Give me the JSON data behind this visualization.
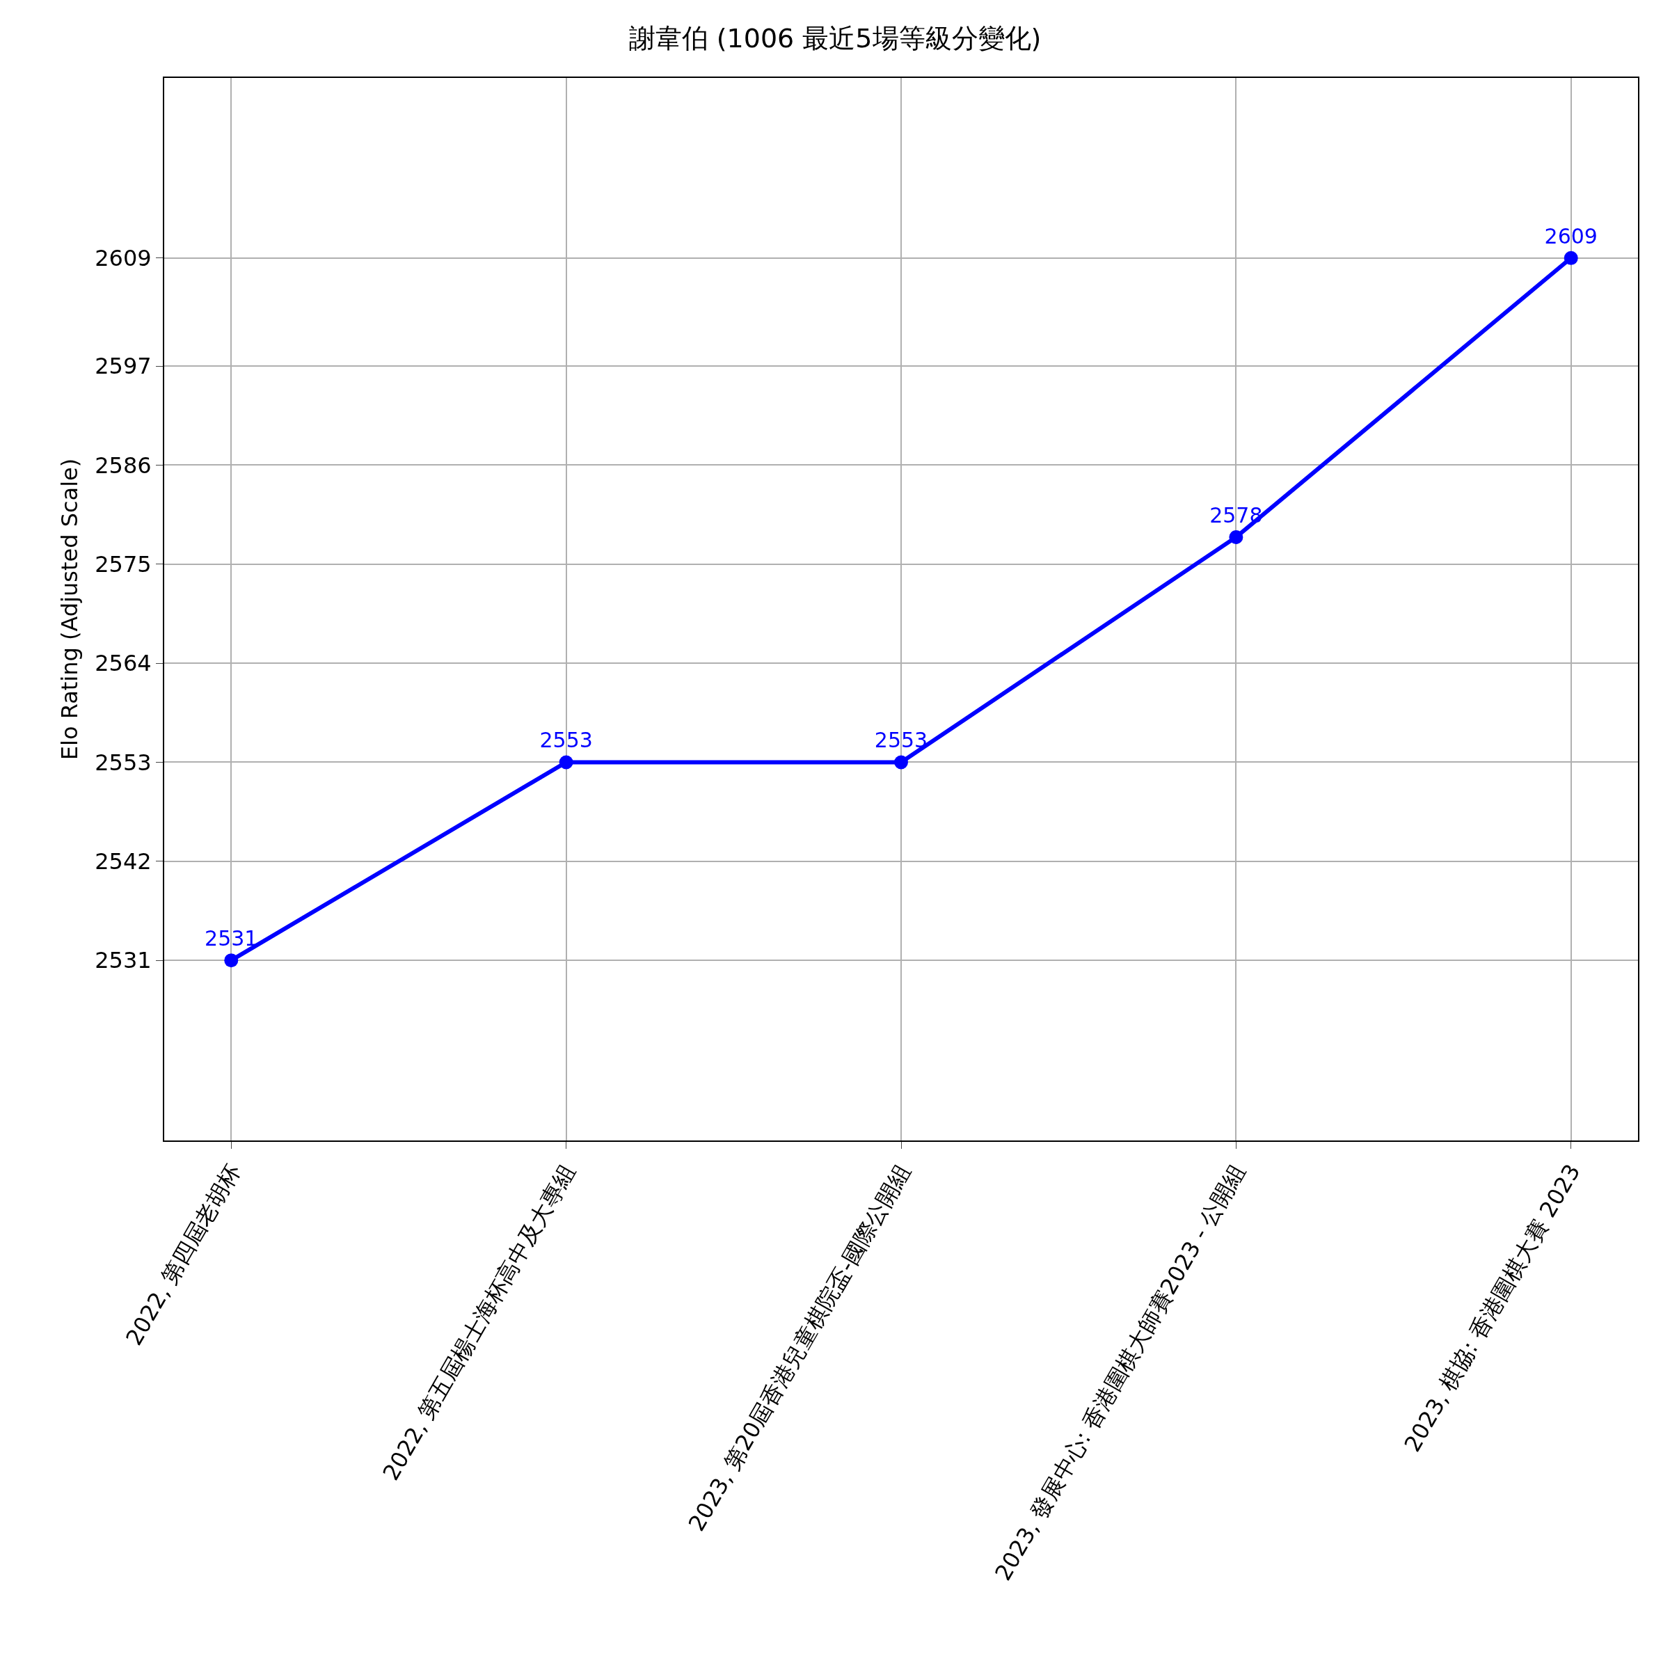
{
  "chart_data": {
    "type": "line",
    "title": "謝韋伯 (1006 最近5場等級分變化)",
    "ylabel": "Elo Rating (Adjusted Scale)",
    "categories": [
      "2022, 第四屆老胡杯",
      "2022, 第五屆楊士海杯高中及大專組",
      "2023, 第20屆香港兒童棋院盃-國際公開組",
      "2023, 發展中心: 香港圍棋大師賽2023 - 公開組",
      "2023, 棋協: 香港圍棋大賽 2023"
    ],
    "series": [
      {
        "color": "#0000ff",
        "values": [
          2531,
          2553,
          2553,
          2578,
          2609
        ]
      }
    ],
    "ylim": [
      2511,
      2629
    ],
    "yticks": [
      2531,
      2542,
      2553,
      2564,
      2575,
      2586,
      2597,
      2609
    ],
    "grid": true,
    "marker": "circle",
    "line_style": "solid",
    "data_labels": true
  }
}
